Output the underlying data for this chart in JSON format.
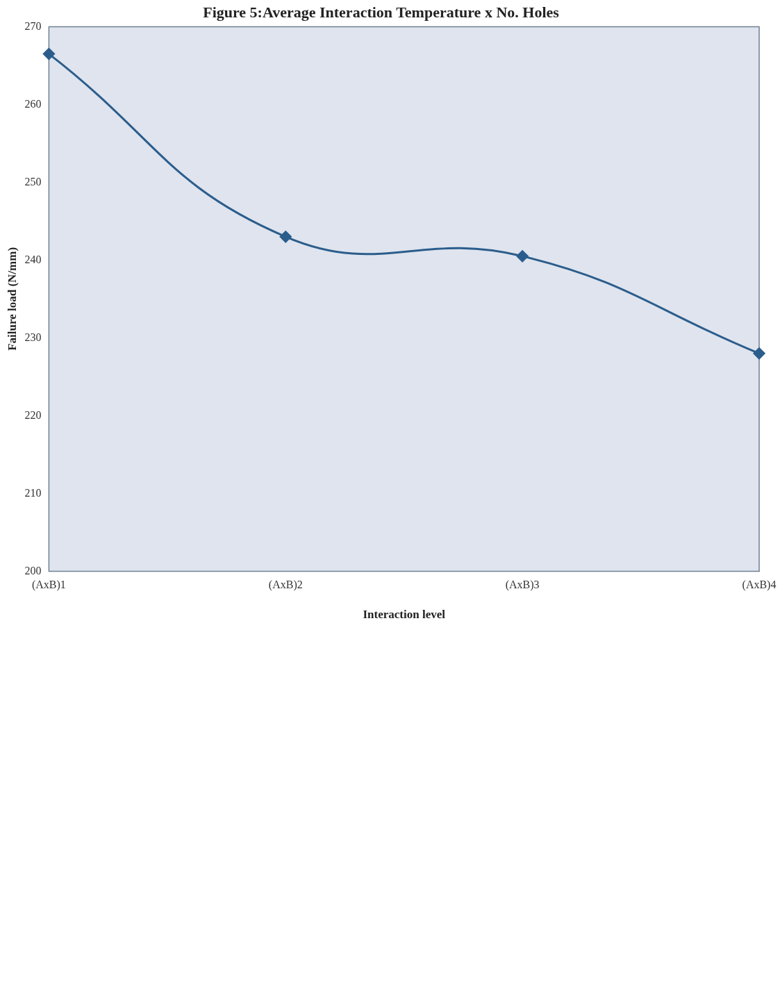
{
  "chart_data": {
    "type": "line",
    "title": "Figure 5:Average Interaction Temperature x No. Holes",
    "xlabel": "Interaction level",
    "ylabel": "Failure load (N/mm)",
    "categories": [
      "(AxB)1",
      "(AxB)2",
      "(AxB)3",
      "(AxB)4"
    ],
    "series": [
      {
        "color": "#2b5d8c",
        "values": [
          266.5,
          243,
          240.5,
          228
        ]
      }
    ],
    "ylim": [
      200,
      270
    ],
    "yticks": [
      200,
      210,
      220,
      230,
      240,
      250,
      260,
      270
    ],
    "grid": false,
    "legend": false,
    "marker": "diamond",
    "line_style": "solid"
  }
}
